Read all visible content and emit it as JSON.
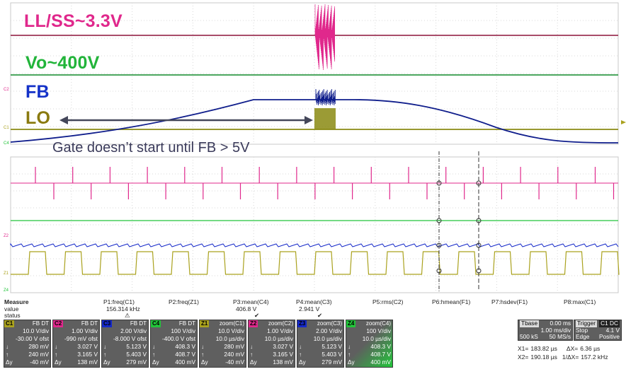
{
  "annotations": {
    "llss": "LL/SS~3.3V",
    "vo": "Vo~400V",
    "fb": "FB",
    "lo": "LO",
    "caption": "Gate doesn’t start until FB > 5V"
  },
  "colors": {
    "c1": "#aaa21e",
    "c2": "#e0288c",
    "c3": "#1428c8",
    "c4": "#22c43a",
    "ll_trace": "#8c1238",
    "vo_trace": "#118a2a",
    "fb_trace": "#101e8c",
    "lo_trace": "#8a8a12",
    "annot_llss": "#e0288c",
    "annot_vo": "#22b43a",
    "annot_fb": "#1432c8",
    "annot_lo": "#8a7a10"
  },
  "channel_tags": {
    "upper_c2": "C2",
    "upper_c1": "C1",
    "upper_c4": "C4",
    "lower_z2": "Z2",
    "lower_z1": "Z1",
    "lower_z4": "Z4"
  },
  "measure": {
    "header": "Measure",
    "value_label": "value",
    "status_label": "status",
    "items": [
      {
        "name": "P1:freq(C1)",
        "value": "156.314 kHz",
        "status": "⚠"
      },
      {
        "name": "P2:freq(Z1)",
        "value": "",
        "status": ""
      },
      {
        "name": "P3:mean(C4)",
        "value": "406.8 V",
        "status": "✔"
      },
      {
        "name": "P4:mean(C3)",
        "value": "2.941 V",
        "status": "✔"
      },
      {
        "name": "P5:rms(C2)",
        "value": "",
        "status": ""
      },
      {
        "name": "P6:hmean(F1)",
        "value": "",
        "status": ""
      },
      {
        "name": "P7:hsdev(F1)",
        "value": "",
        "status": ""
      },
      {
        "name": "P8:max(C1)",
        "value": "",
        "status": ""
      }
    ]
  },
  "panels": [
    {
      "tag": "C1",
      "title": "FB DT",
      "color": "#aaa21e",
      "rows": [
        [
          "",
          "10.0 V/div"
        ],
        [
          "",
          "-30.00 V ofst"
        ],
        [
          "↓",
          "280 mV"
        ],
        [
          "↑",
          "240 mV"
        ],
        [
          "Δy",
          "-40 mV"
        ]
      ]
    },
    {
      "tag": "C2",
      "title": "FB DT",
      "color": "#e0288c",
      "rows": [
        [
          "",
          "1.00 V/div"
        ],
        [
          "",
          "-990 mV ofst"
        ],
        [
          "↓",
          "3.027 V"
        ],
        [
          "↑",
          "3.165 V"
        ],
        [
          "Δy",
          "138 mV"
        ]
      ]
    },
    {
      "tag": "C3",
      "title": "FB DT",
      "color": "#1428c8",
      "rows": [
        [
          "",
          "2.00 V/div"
        ],
        [
          "",
          "-8.000 V ofst"
        ],
        [
          "↓",
          "5.123 V"
        ],
        [
          "↑",
          "5.403 V"
        ],
        [
          "Δy",
          "279 mV"
        ]
      ]
    },
    {
      "tag": "C4",
      "title": "FB DT",
      "color": "#22c43a",
      "rows": [
        [
          "",
          "100 V/div"
        ],
        [
          "",
          "-400.0 V ofst"
        ],
        [
          "↓",
          "408.3 V"
        ],
        [
          "↑",
          "408.7 V"
        ],
        [
          "Δy",
          "400 mV"
        ]
      ]
    },
    {
      "tag": "Z1",
      "title": "zoom(C1)",
      "color": "#aaa21e",
      "rows": [
        [
          "",
          "10.0 V/div"
        ],
        [
          "",
          "10.0 µs/div"
        ],
        [
          "↓",
          "280 mV"
        ],
        [
          "↑",
          "240 mV"
        ],
        [
          "Δy",
          "-40 mV"
        ]
      ]
    },
    {
      "tag": "Z2",
      "title": "zoom(C2)",
      "color": "#e0288c",
      "rows": [
        [
          "",
          "1.00 V/div"
        ],
        [
          "",
          "10.0 µs/div"
        ],
        [
          "↓",
          "3.027 V"
        ],
        [
          "↑",
          "3.165 V"
        ],
        [
          "Δy",
          "138 mV"
        ]
      ]
    },
    {
      "tag": "Z3",
      "title": "zoom(C3)",
      "color": "#1428c8",
      "rows": [
        [
          "",
          "2.00 V/div"
        ],
        [
          "",
          "10.0 µs/div"
        ],
        [
          "↓",
          "5.123 V"
        ],
        [
          "↑",
          "5.403 V"
        ],
        [
          "Δy",
          "279 mV"
        ]
      ]
    },
    {
      "tag": "Z4",
      "title": "zoom(C4)",
      "color": "#22c43a",
      "rows": [
        [
          "",
          "100 V/div"
        ],
        [
          "",
          "10.0 µs/div"
        ],
        [
          "↓",
          "408.3 V"
        ],
        [
          "↑",
          "408.7 V"
        ],
        [
          "Δy",
          "400 mV"
        ]
      ]
    }
  ],
  "timebase": {
    "label": "Tbase",
    "value": "0.00 ms",
    "rows": [
      [
        "",
        "1.00 ms/div"
      ],
      [
        "500 kS",
        "50 MS/s"
      ]
    ]
  },
  "trigger": {
    "label": "Trigger",
    "tag": "C1 DC",
    "rows": [
      [
        "Stop",
        "4.1 V"
      ],
      [
        "Edge",
        "Positive"
      ]
    ]
  },
  "cursors": {
    "rows": [
      [
        "X1=",
        "183.82 µs",
        "ΔX=",
        "6.36 µs"
      ],
      [
        "X2=",
        "190.18 µs",
        "1/ΔX=",
        "157.2 kHz"
      ]
    ]
  }
}
